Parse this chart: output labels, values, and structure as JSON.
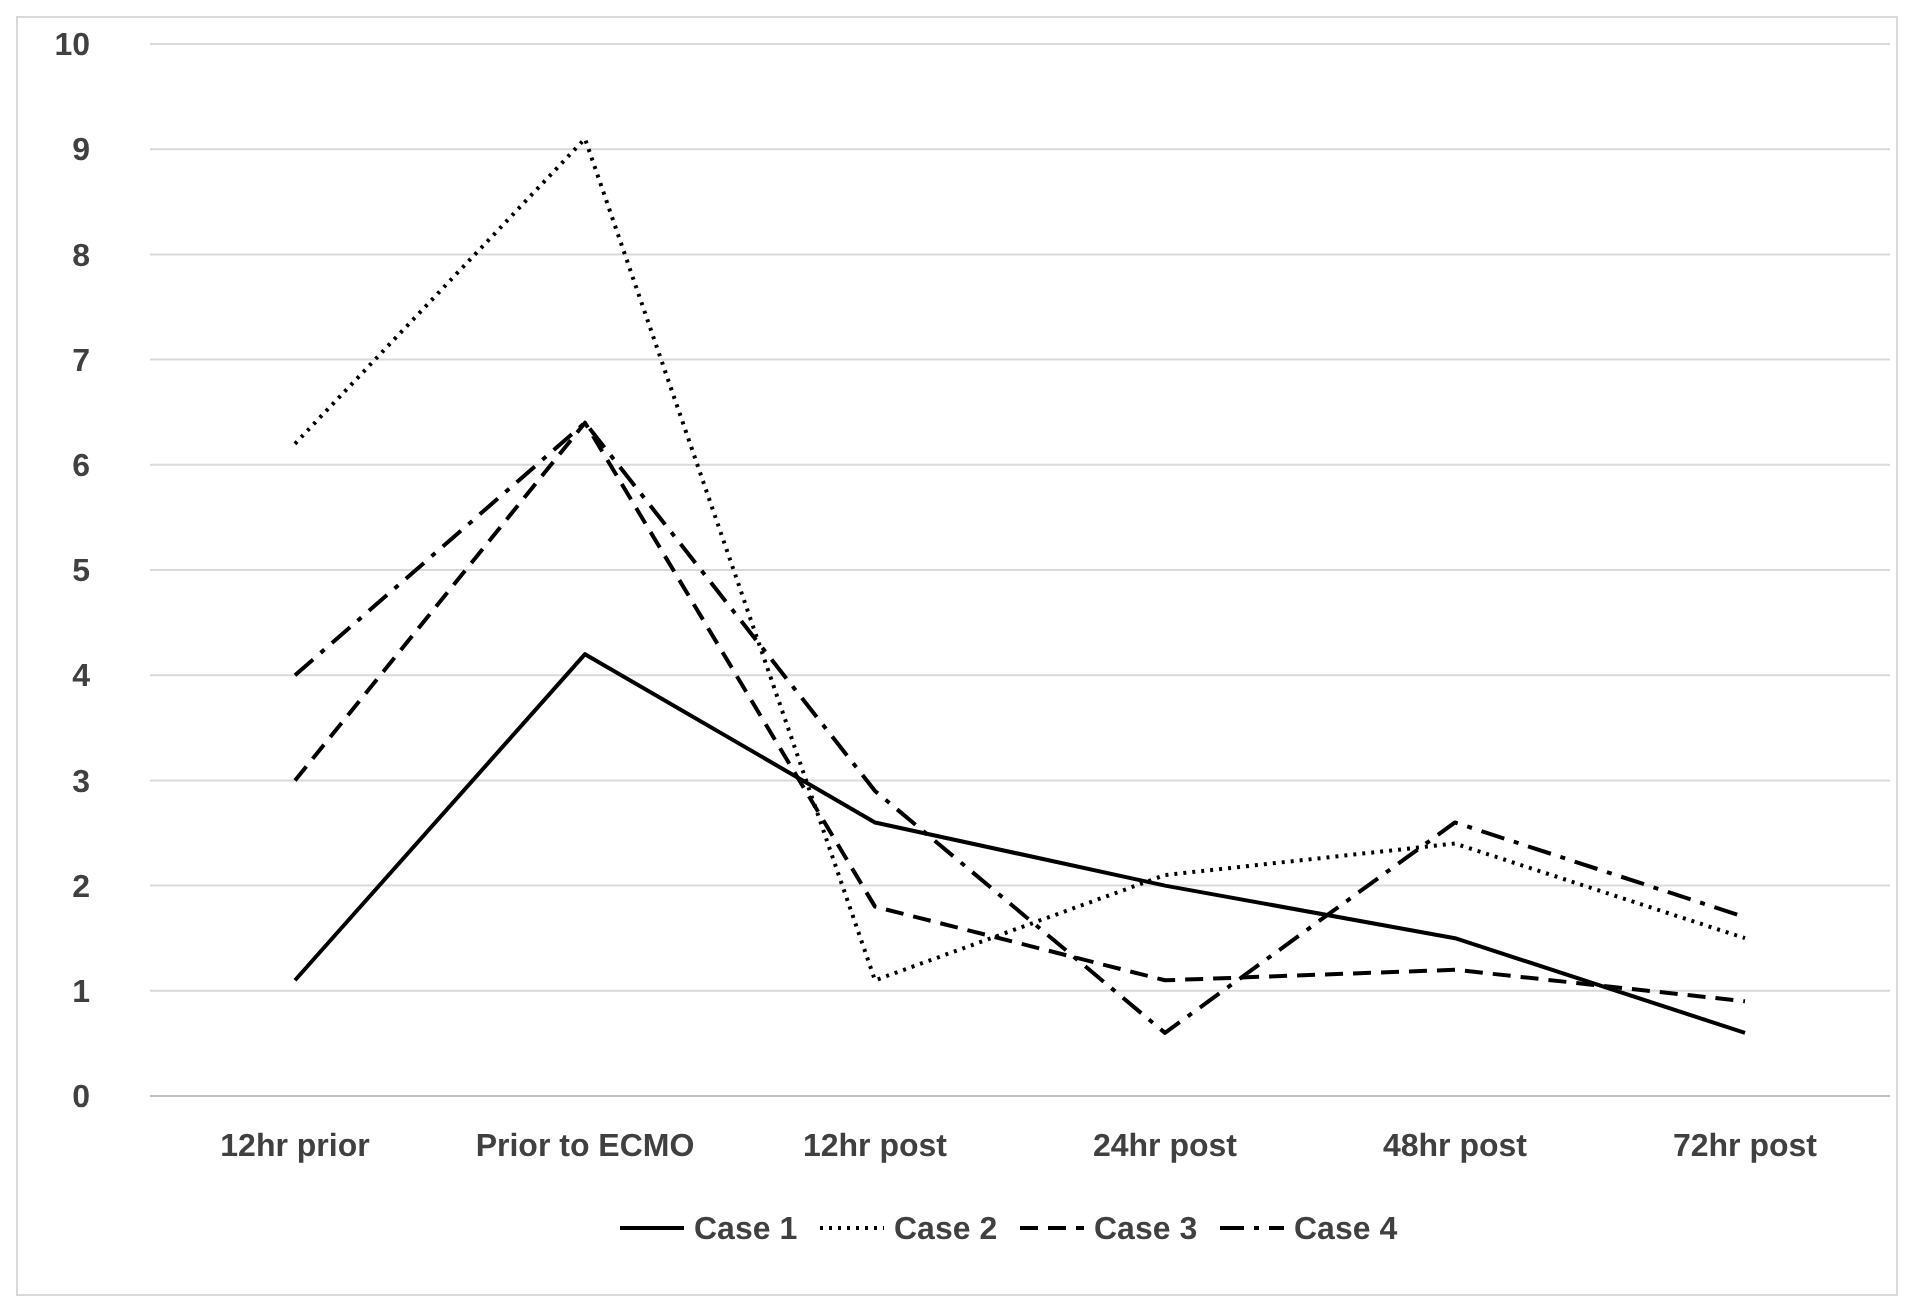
{
  "chart_data": {
    "type": "line",
    "categories": [
      "12hr prior",
      "Prior to ECMO",
      "12hr post",
      "24hr post",
      "48hr post",
      "72hr post"
    ],
    "series": [
      {
        "name": "Case 1",
        "color": "#000000",
        "line_style": "solid",
        "values": [
          1.1,
          4.2,
          2.6,
          2.0,
          1.5,
          0.6
        ]
      },
      {
        "name": "Case 2",
        "color": "#000000",
        "line_style": "dotted",
        "values": [
          6.2,
          9.1,
          1.1,
          2.1,
          2.4,
          1.5
        ]
      },
      {
        "name": "Case 3",
        "color": "#000000",
        "line_style": "dashed",
        "values": [
          3.0,
          6.4,
          1.8,
          1.1,
          1.2,
          0.9
        ]
      },
      {
        "name": "Case 4",
        "color": "#000000",
        "line_style": "dashdot",
        "values": [
          4.0,
          6.4,
          2.9,
          0.6,
          2.6,
          1.7
        ]
      }
    ],
    "ylim": [
      0,
      10
    ],
    "yticks": [
      0,
      1,
      2,
      3,
      4,
      5,
      6,
      7,
      8,
      9,
      10
    ],
    "grid": "y",
    "legend": "bottom",
    "marker": "none"
  }
}
